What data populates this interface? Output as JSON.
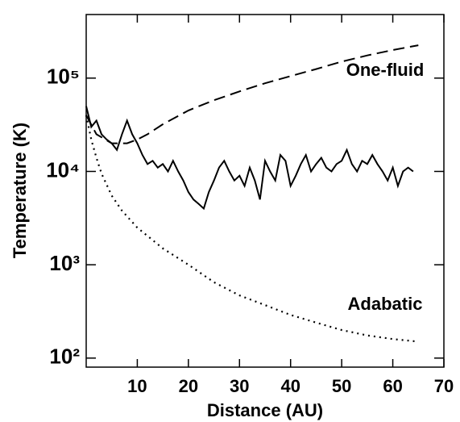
{
  "chart_data": {
    "type": "line",
    "xlabel": "Distance (AU)",
    "ylabel": "Temperature (K)",
    "xlim": [
      0,
      70
    ],
    "xticks": [
      10,
      20,
      30,
      40,
      50,
      60,
      70
    ],
    "ylim": [
      80,
      480000
    ],
    "ylog": true,
    "yticks": [
      {
        "value": 100,
        "label": "10²"
      },
      {
        "value": 1000,
        "label": "10³"
      },
      {
        "value": 10000,
        "label": "10⁴"
      },
      {
        "value": 100000,
        "label": "10⁵"
      }
    ],
    "series": [
      {
        "color": "#000000",
        "dash": "solid",
        "x": [
          0,
          1,
          2,
          3,
          4,
          5,
          6,
          7,
          8,
          9,
          10,
          11,
          12,
          13,
          14,
          15,
          16,
          17,
          18,
          19,
          20,
          21,
          22,
          23,
          24,
          25,
          26,
          27,
          28,
          29,
          30,
          31,
          32,
          33,
          34,
          35,
          36,
          37,
          38,
          39,
          40,
          41,
          42,
          43,
          44,
          45,
          46,
          47,
          48,
          49,
          50,
          51,
          52,
          53,
          54,
          55,
          56,
          57,
          58,
          59,
          60,
          61,
          62,
          63,
          64
        ],
        "values": [
          50000,
          30000,
          35000,
          25000,
          22000,
          20000,
          17000,
          25000,
          35000,
          25000,
          20000,
          15000,
          12000,
          13000,
          11000,
          12000,
          10000,
          13000,
          10000,
          8000,
          6000,
          5000,
          4500,
          4000,
          6000,
          8000,
          11000,
          13000,
          10000,
          8000,
          9000,
          7000,
          11000,
          8000,
          5000,
          13000,
          10000,
          8000,
          15000,
          13000,
          7000,
          9000,
          12000,
          15000,
          10000,
          12000,
          14000,
          11000,
          10000,
          12000,
          13000,
          17000,
          12000,
          10000,
          13000,
          12000,
          15000,
          12000,
          10000,
          8000,
          11000,
          7000,
          10000,
          11000,
          10000
        ]
      },
      {
        "name": "One-fluid",
        "color": "#000000",
        "dash": "dashed",
        "x": [
          0,
          2,
          5,
          8,
          10,
          12,
          15,
          20,
          25,
          30,
          35,
          40,
          45,
          50,
          55,
          60,
          65
        ],
        "values": [
          40000,
          25000,
          20000,
          20000,
          22000,
          25000,
          32000,
          45000,
          58000,
          72000,
          88000,
          105000,
          125000,
          150000,
          175000,
          200000,
          225000
        ]
      },
      {
        "name": "Adabatic",
        "color": "#000000",
        "dash": "dotted",
        "x": [
          0,
          1,
          2,
          3,
          5,
          7,
          10,
          15,
          20,
          25,
          30,
          35,
          40,
          45,
          50,
          55,
          60,
          65
        ],
        "values": [
          40000,
          22000,
          14000,
          9500,
          5500,
          3800,
          2500,
          1500,
          1000,
          650,
          470,
          370,
          290,
          240,
          200,
          175,
          160,
          150
        ]
      }
    ]
  }
}
